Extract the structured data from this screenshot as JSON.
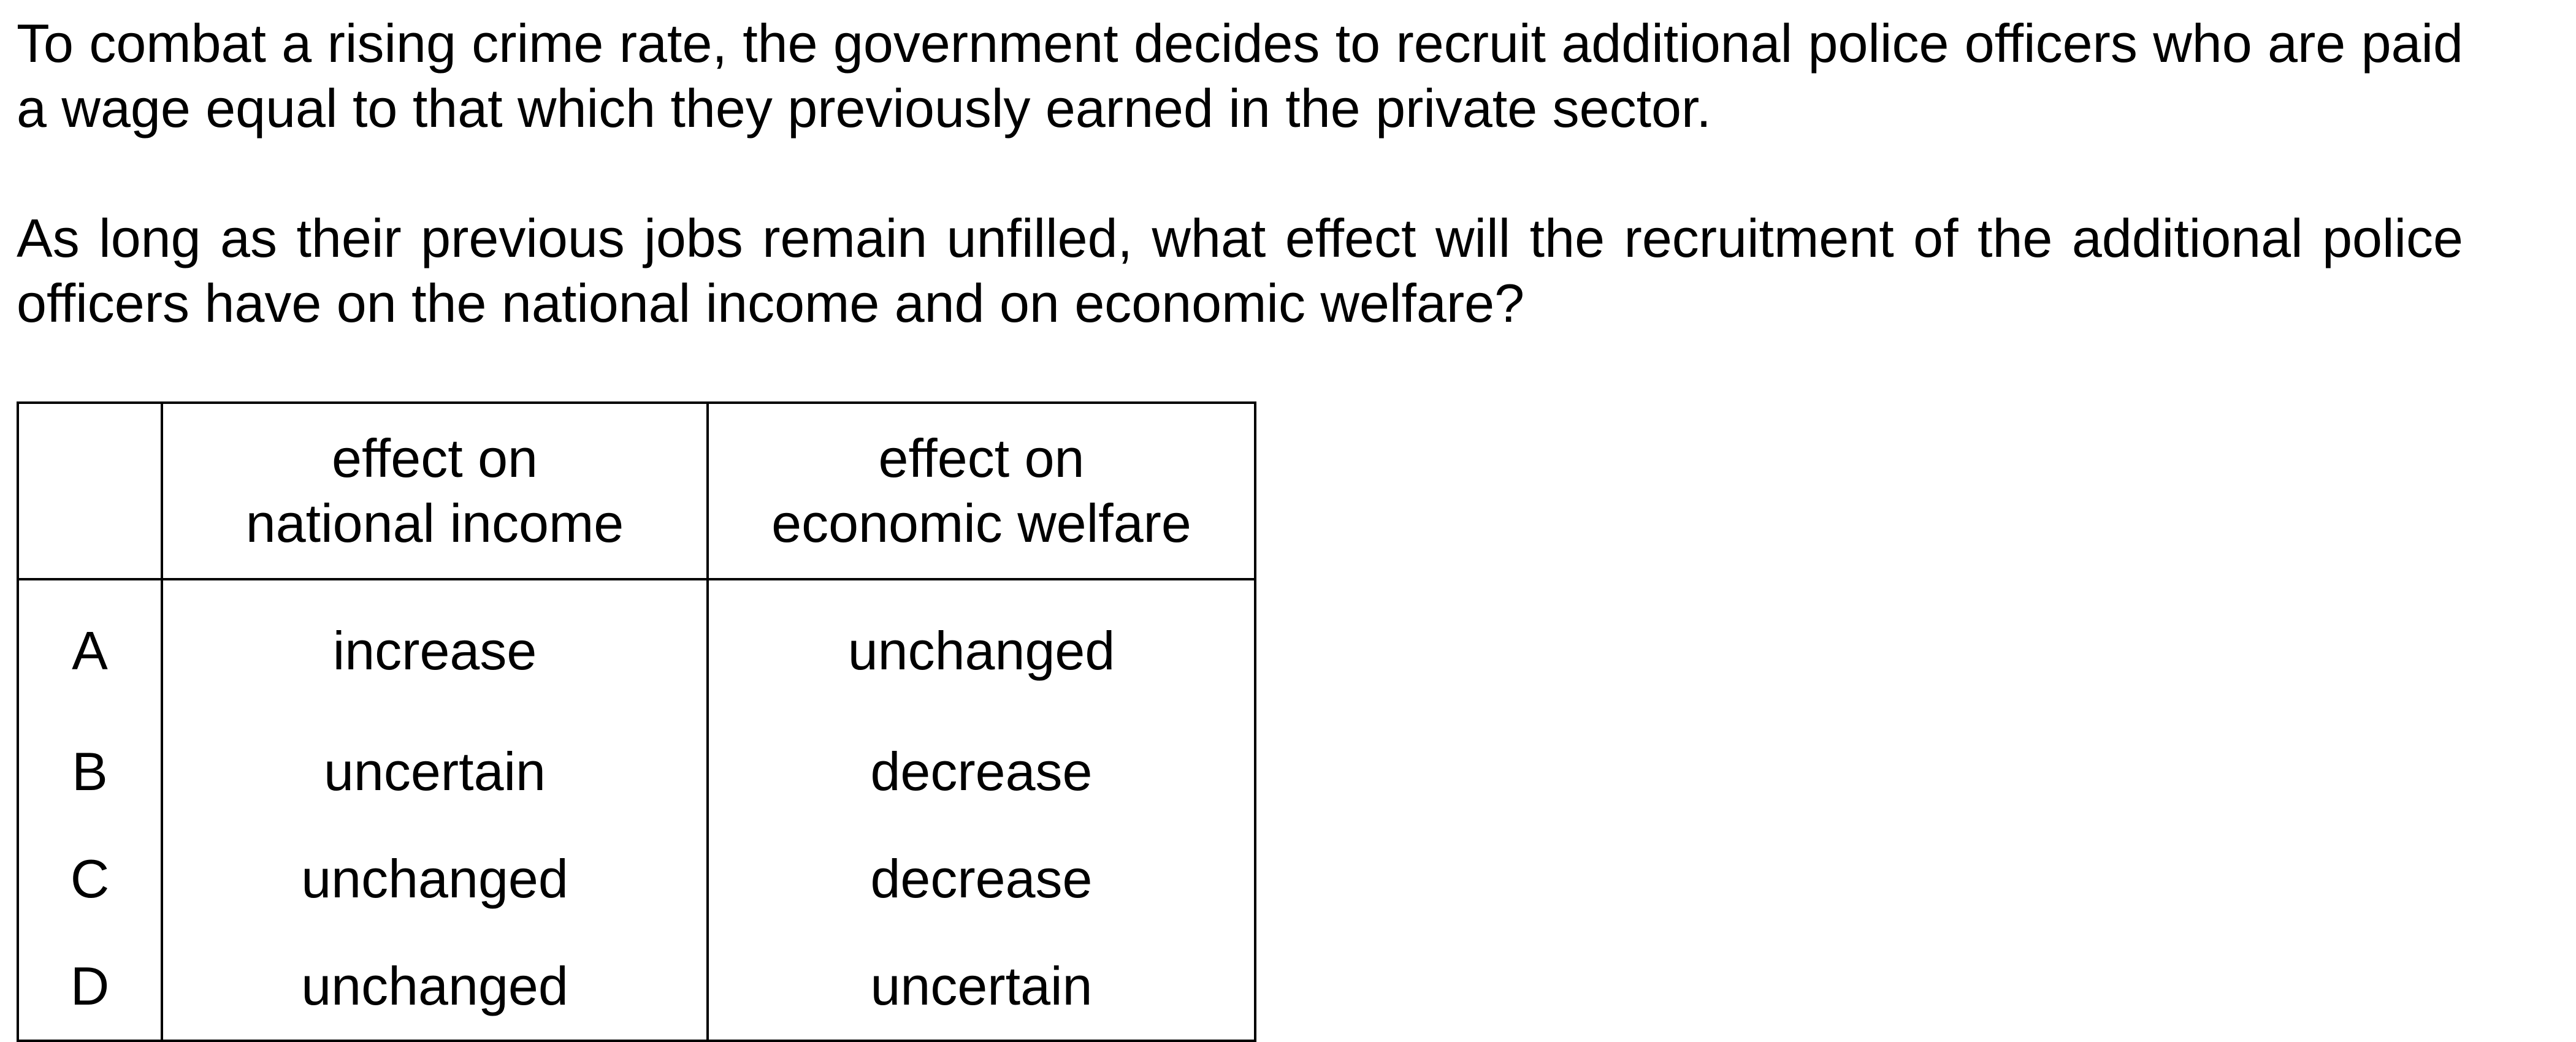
{
  "question": {
    "paragraph_1": "To combat a rising crime rate, the government decides to recruit additional police officers who are paid a wage equal to that which they previously earned in the private sector.",
    "paragraph_2": "As long as their previous jobs remain unfilled, what effect will the recruitment of the additional police officers have on the national income and on economic welfare?"
  },
  "table": {
    "headers": {
      "option": "",
      "col1_line1": "effect on",
      "col1_line2": "national income",
      "col2_line1": "effect on",
      "col2_line2": "economic welfare"
    },
    "rows": [
      {
        "option": "A",
        "national_income": "increase",
        "economic_welfare": "unchanged"
      },
      {
        "option": "B",
        "national_income": "uncertain",
        "economic_welfare": "decrease"
      },
      {
        "option": "C",
        "national_income": "unchanged",
        "economic_welfare": "decrease"
      },
      {
        "option": "D",
        "national_income": "unchanged",
        "economic_welfare": "uncertain"
      }
    ]
  }
}
